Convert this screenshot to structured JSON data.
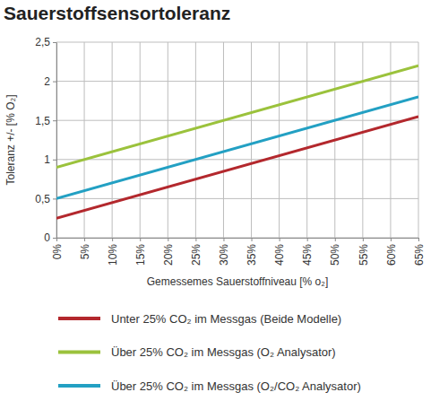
{
  "chart_data": {
    "type": "line",
    "title": "Sauerstoffsensortoleranz",
    "x_label": "Gemessemes Sauerstoffniveau [% o₂]",
    "y_label": "Toleranz +/- [% O₂]",
    "xlim": [
      0,
      65
    ],
    "ylim": [
      0,
      2.5
    ],
    "xticks": [
      {
        "value": 0,
        "label": "0%"
      },
      {
        "value": 5,
        "label": "5%"
      },
      {
        "value": 10,
        "label": "10%"
      },
      {
        "value": 15,
        "label": "15%"
      },
      {
        "value": 20,
        "label": "20%"
      },
      {
        "value": 25,
        "label": "25%"
      },
      {
        "value": 30,
        "label": "30%"
      },
      {
        "value": 35,
        "label": "35%"
      },
      {
        "value": 40,
        "label": "40%"
      },
      {
        "value": 45,
        "label": "45%"
      },
      {
        "value": 50,
        "label": "50%"
      },
      {
        "value": 55,
        "label": "55%"
      },
      {
        "value": 60,
        "label": "60%"
      },
      {
        "value": 65,
        "label": "65%"
      }
    ],
    "yticks": [
      0,
      {
        "value": 0.5,
        "label": "0,5"
      },
      1,
      {
        "value": 1.5,
        "label": "1,5"
      },
      2,
      {
        "value": 2.5,
        "label": "2,5"
      }
    ],
    "grid": true,
    "legend": "bottom",
    "x": [
      0,
      65
    ],
    "series": [
      {
        "name": "Unter 25% CO₂ im Messgas (Beide Modelle)",
        "color": "#b3282d",
        "values": [
          0.25,
          1.55
        ]
      },
      {
        "name": "Über 25% CO₂ im Messgas (O₂ Analysator)",
        "color": "#9bc23c",
        "values": [
          0.9,
          2.2
        ]
      },
      {
        "name": "Über 25% CO₂ im Messgas (O₂/CO₂ Analysator)",
        "color": "#23a0c3",
        "values": [
          0.5,
          1.8
        ]
      }
    ]
  }
}
